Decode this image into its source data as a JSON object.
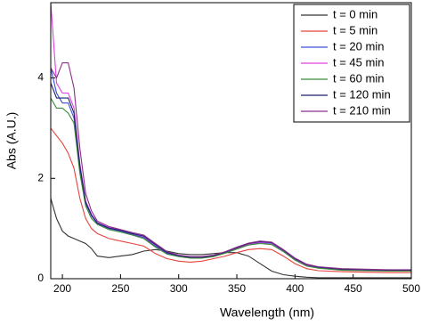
{
  "chart_data": {
    "type": "line",
    "x_label": "Wavelength (nm)",
    "y_label": "Abs (A.U.)",
    "xlim": [
      190,
      500
    ],
    "ylim": [
      0,
      5.5
    ],
    "xticks": [
      200,
      250,
      300,
      350,
      400,
      450,
      500
    ],
    "yticks": [
      0,
      2,
      4
    ],
    "legend": "upper right",
    "x": [
      190,
      195,
      200,
      205,
      210,
      215,
      220,
      225,
      230,
      240,
      250,
      260,
      270,
      280,
      290,
      300,
      310,
      320,
      330,
      340,
      350,
      360,
      370,
      380,
      390,
      400,
      410,
      420,
      440,
      460,
      480,
      500
    ],
    "series": [
      {
        "name": "t = 0 min",
        "color": "#333333",
        "values": [
          1.6,
          1.2,
          0.95,
          0.85,
          0.8,
          0.75,
          0.7,
          0.6,
          0.45,
          0.42,
          0.45,
          0.48,
          0.55,
          0.58,
          0.55,
          0.5,
          0.48,
          0.48,
          0.5,
          0.52,
          0.52,
          0.45,
          0.3,
          0.15,
          0.08,
          0.05,
          0.03,
          0.02,
          0.02,
          0.02,
          0.02,
          0.02
        ]
      },
      {
        "name": "t = 5 min",
        "color": "#e8413a",
        "values": [
          3.0,
          2.85,
          2.7,
          2.5,
          2.2,
          1.6,
          1.2,
          1.0,
          0.9,
          0.8,
          0.75,
          0.7,
          0.65,
          0.5,
          0.4,
          0.35,
          0.33,
          0.35,
          0.4,
          0.45,
          0.52,
          0.58,
          0.6,
          0.58,
          0.45,
          0.3,
          0.2,
          0.16,
          0.14,
          0.13,
          0.12,
          0.12
        ]
      },
      {
        "name": "t = 20 min",
        "color": "#3a4fd8",
        "values": [
          4.2,
          3.7,
          3.5,
          3.5,
          3.2,
          2.2,
          1.5,
          1.25,
          1.1,
          1.0,
          0.95,
          0.88,
          0.82,
          0.65,
          0.5,
          0.45,
          0.42,
          0.42,
          0.45,
          0.52,
          0.6,
          0.68,
          0.72,
          0.7,
          0.55,
          0.38,
          0.26,
          0.22,
          0.18,
          0.17,
          0.16,
          0.16
        ]
      },
      {
        "name": "t = 45 min",
        "color": "#e040e0",
        "values": [
          5.5,
          3.9,
          3.7,
          3.7,
          3.4,
          2.3,
          1.55,
          1.28,
          1.12,
          1.02,
          0.97,
          0.9,
          0.84,
          0.67,
          0.52,
          0.46,
          0.43,
          0.43,
          0.46,
          0.53,
          0.61,
          0.69,
          0.73,
          0.71,
          0.56,
          0.39,
          0.27,
          0.23,
          0.19,
          0.18,
          0.17,
          0.17
        ]
      },
      {
        "name": "t = 60 min",
        "color": "#3a8a3a",
        "values": [
          3.6,
          3.4,
          3.4,
          3.3,
          3.1,
          2.1,
          1.45,
          1.2,
          1.08,
          0.98,
          0.93,
          0.87,
          0.8,
          0.63,
          0.49,
          0.44,
          0.41,
          0.41,
          0.44,
          0.51,
          0.59,
          0.67,
          0.7,
          0.68,
          0.54,
          0.37,
          0.25,
          0.21,
          0.17,
          0.16,
          0.15,
          0.15
        ]
      },
      {
        "name": "t = 120 min",
        "color": "#1f1f6e",
        "values": [
          3.9,
          3.6,
          3.6,
          3.6,
          3.3,
          2.25,
          1.52,
          1.27,
          1.11,
          1.01,
          0.96,
          0.9,
          0.85,
          0.68,
          0.52,
          0.46,
          0.43,
          0.43,
          0.46,
          0.53,
          0.62,
          0.7,
          0.74,
          0.72,
          0.57,
          0.4,
          0.28,
          0.23,
          0.19,
          0.18,
          0.17,
          0.17
        ]
      },
      {
        "name": "t = 210 min",
        "color": "#8a2f8a",
        "values": [
          4.2,
          4.0,
          4.3,
          4.3,
          3.8,
          2.6,
          1.7,
          1.35,
          1.15,
          1.04,
          0.98,
          0.92,
          0.87,
          0.7,
          0.54,
          0.47,
          0.44,
          0.44,
          0.47,
          0.54,
          0.63,
          0.71,
          0.75,
          0.73,
          0.58,
          0.41,
          0.29,
          0.24,
          0.2,
          0.19,
          0.18,
          0.18
        ]
      }
    ]
  }
}
